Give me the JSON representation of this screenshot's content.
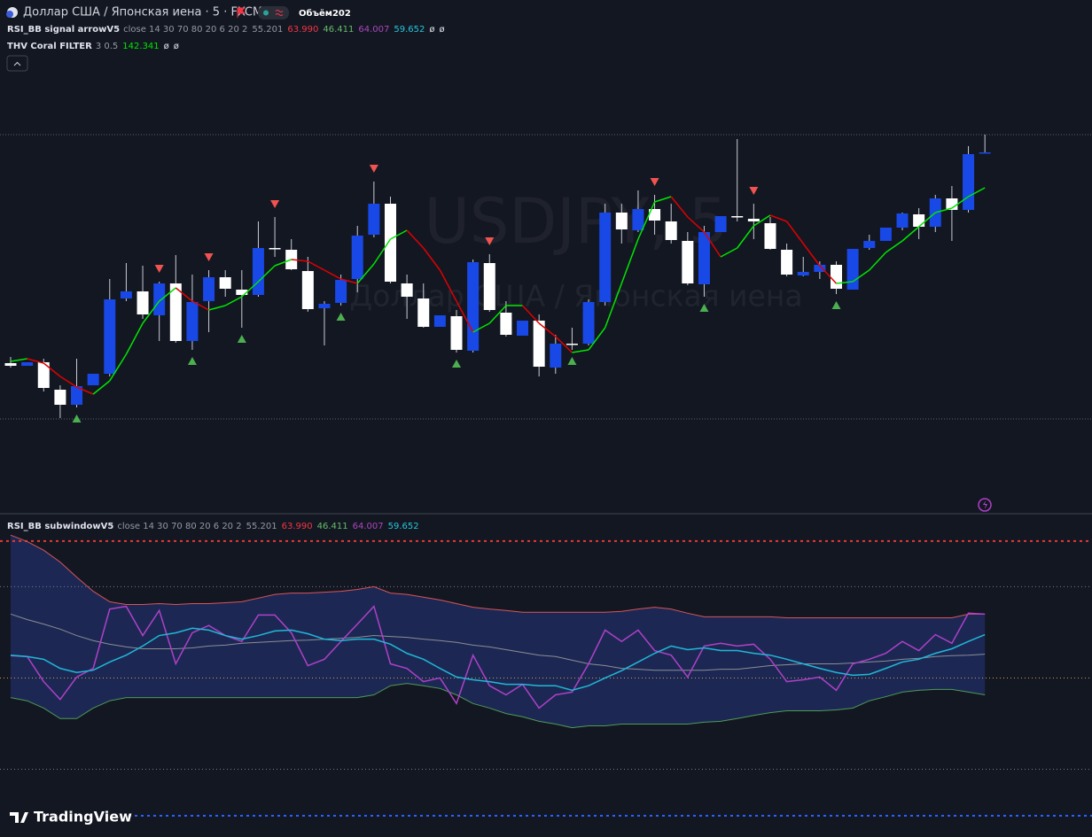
{
  "header": {
    "symbol": "Доллар США / Японская иена · 5 · FXCM",
    "volume": "Объём202"
  },
  "watermark": {
    "symbol": "USDJPY, 5",
    "description": "Доллар США / Японская иена"
  },
  "logo": "TradingView",
  "chart_data": [
    {
      "type": "candlestick",
      "ylim": [
        0,
        350
      ],
      "up_color": "#1848e6",
      "down_color": "#ffffff",
      "wick_color": "#c9ccd4",
      "legends": [
        {
          "name": "RSI_BB signal arrowV5",
          "params": "close 14 30 70 80 20 6 20 2",
          "values": [
            {
              "text": "55.201",
              "color": "#9598a1"
            },
            {
              "text": "63.990",
              "color": "#f23645"
            },
            {
              "text": "46.411",
              "color": "#66bb6a"
            },
            {
              "text": "64.007",
              "color": "#ab47bc"
            },
            {
              "text": "59.652",
              "color": "#26c6da"
            }
          ],
          "extras": [
            "ø",
            "ø"
          ]
        },
        {
          "name": "THV Coral FILTER",
          "params": "3 0.5",
          "values": [
            {
              "text": "142.341",
              "color": "#00e600"
            }
          ],
          "extras": [
            "ø",
            "ø"
          ]
        }
      ],
      "ohlc": [
        [
          70,
          77,
          65,
          67
        ],
        [
          67,
          71,
          67,
          71
        ],
        [
          71,
          75,
          38,
          42
        ],
        [
          40,
          45,
          8,
          23
        ],
        [
          23,
          75,
          20,
          44
        ],
        [
          45,
          58,
          45,
          58
        ],
        [
          58,
          165,
          55,
          142
        ],
        [
          143,
          183,
          140,
          151
        ],
        [
          151,
          180,
          120,
          125
        ],
        [
          124,
          162,
          95,
          160
        ],
        [
          160,
          192,
          93,
          95
        ],
        [
          95,
          170,
          85,
          139
        ],
        [
          140,
          175,
          105,
          167
        ],
        [
          167,
          175,
          145,
          154
        ],
        [
          153,
          175,
          110,
          147
        ],
        [
          147,
          230,
          145,
          200
        ],
        [
          200,
          235,
          190,
          199
        ],
        [
          198,
          210,
          175,
          176
        ],
        [
          174,
          190,
          128,
          131
        ],
        [
          132,
          140,
          90,
          137
        ],
        [
          138,
          170,
          135,
          164
        ],
        [
          165,
          225,
          150,
          214
        ],
        [
          215,
          275,
          212,
          250
        ],
        [
          250,
          258,
          160,
          162
        ],
        [
          160,
          170,
          120,
          145
        ],
        [
          143,
          160,
          110,
          111
        ],
        [
          111,
          124,
          111,
          124
        ],
        [
          123,
          130,
          82,
          85
        ],
        [
          84,
          187,
          82,
          184
        ],
        [
          183,
          193,
          128,
          130
        ],
        [
          127,
          140,
          100,
          102
        ],
        [
          101,
          118,
          101,
          118
        ],
        [
          118,
          125,
          55,
          66
        ],
        [
          65,
          102,
          58,
          92
        ],
        [
          92,
          110,
          85,
          91
        ],
        [
          92,
          142,
          90,
          139
        ],
        [
          139,
          250,
          135,
          240
        ],
        [
          240,
          250,
          205,
          221
        ],
        [
          220,
          265,
          218,
          244
        ],
        [
          244,
          260,
          215,
          231
        ],
        [
          230,
          250,
          205,
          209
        ],
        [
          208,
          218,
          158,
          160
        ],
        [
          159,
          225,
          145,
          218
        ],
        [
          218,
          236,
          218,
          236
        ],
        [
          236,
          323,
          230,
          235
        ],
        [
          233,
          250,
          210,
          230
        ],
        [
          228,
          235,
          198,
          199
        ],
        [
          198,
          205,
          168,
          170
        ],
        [
          169,
          190,
          168,
          173
        ],
        [
          173,
          185,
          165,
          181
        ],
        [
          181,
          185,
          148,
          154
        ],
        [
          153,
          199,
          153,
          199
        ],
        [
          200,
          215,
          198,
          208
        ],
        [
          208,
          223,
          208,
          223
        ],
        [
          223,
          240,
          220,
          239
        ],
        [
          238,
          245,
          210,
          224
        ],
        [
          224,
          260,
          218,
          256
        ],
        [
          256,
          270,
          208,
          243
        ],
        [
          243,
          315,
          240,
          306
        ],
        [
          308,
          328,
          308,
          308
        ]
      ],
      "coral": {
        "up_color": "#00e600",
        "down_color": "#e00000",
        "values": [
          72,
          75,
          70,
          55,
          43,
          35,
          50,
          80,
          115,
          140,
          155,
          140,
          130,
          135,
          145,
          162,
          180,
          187,
          185,
          175,
          165,
          160,
          182,
          210,
          220,
          200,
          175,
          140,
          105,
          115,
          135,
          135,
          115,
          100,
          82,
          85,
          110,
          160,
          210,
          252,
          258,
          235,
          218,
          190,
          200,
          225,
          237,
          230,
          205,
          180,
          160,
          162,
          175,
          195,
          208,
          224,
          240,
          245,
          258,
          268
        ]
      },
      "sell_signals": {
        "color": "#f05350",
        "indices": [
          9,
          12,
          16,
          22,
          29,
          39,
          45
        ]
      },
      "buy_signals": {
        "color": "#4caf50",
        "indices": [
          4,
          11,
          14,
          20,
          27,
          34,
          42,
          50
        ]
      }
    },
    {
      "type": "line",
      "ylim": [
        20,
        86
      ],
      "fill": "#1f2b5c",
      "legends": [
        {
          "name": "RSI_BB subwindowV5",
          "params": "close 14 30 70 80 20 6 20 2",
          "values": [
            {
              "text": "55.201",
              "color": "#9598a1"
            },
            {
              "text": "63.990",
              "color": "#f23645"
            },
            {
              "text": "46.411",
              "color": "#66bb6a"
            },
            {
              "text": "64.007",
              "color": "#ab47bc"
            },
            {
              "text": "59.652",
              "color": "#26c6da"
            }
          ],
          "extras": []
        }
      ],
      "levels": [
        {
          "value": 80,
          "color": "#e53935"
        },
        {
          "value": 70,
          "color": "#787b86"
        },
        {
          "value": 50,
          "color": "#c9a04a"
        },
        {
          "value": 30,
          "color": "#787b86"
        }
      ],
      "series": [
        {
          "color": "#d9545a",
          "values": [
            81.3,
            79.9,
            78.0,
            75.4,
            72.1,
            69.0,
            66.7,
            66.1,
            66.1,
            66.3,
            66.1,
            66.3,
            66.3,
            66.5,
            66.7,
            67.5,
            68.3,
            68.6,
            68.6,
            68.8,
            69.0,
            69.4,
            70.0,
            68.6,
            68.3,
            67.7,
            67.1,
            66.3,
            65.5,
            65.1,
            64.8,
            64.4,
            64.4,
            64.4,
            64.4,
            64.4,
            64.4,
            64.6,
            65.1,
            65.5,
            65.1,
            64.2,
            63.4,
            63.4,
            63.4,
            63.4,
            63.4,
            63.2,
            63.2,
            63.2,
            63.2,
            63.2,
            63.2,
            63.2,
            63.2,
            63.2,
            63.2,
            63.2,
            64.0,
            64.0
          ]
        },
        {
          "color": "#4f9a56",
          "values": [
            45.7,
            45.0,
            43.4,
            41.1,
            41.1,
            43.4,
            45.0,
            45.7,
            45.7,
            45.7,
            45.7,
            45.7,
            45.7,
            45.7,
            45.7,
            45.7,
            45.7,
            45.7,
            45.7,
            45.7,
            45.7,
            45.7,
            46.3,
            48.3,
            48.8,
            48.3,
            47.7,
            46.3,
            44.4,
            43.4,
            42.2,
            41.5,
            40.5,
            39.9,
            39.1,
            39.5,
            39.5,
            39.9,
            39.9,
            39.9,
            39.9,
            39.9,
            40.3,
            40.5,
            41.1,
            41.8,
            42.4,
            42.8,
            42.8,
            42.8,
            43.0,
            43.4,
            45.0,
            45.9,
            46.9,
            47.3,
            47.5,
            47.5,
            46.9,
            46.3
          ]
        },
        {
          "color": "#8a8d96",
          "values": [
            64.0,
            62.8,
            61.8,
            60.7,
            59.3,
            58.2,
            57.4,
            56.8,
            56.4,
            56.4,
            56.4,
            56.6,
            57.0,
            57.2,
            57.6,
            57.8,
            58.0,
            58.2,
            58.3,
            58.5,
            58.7,
            58.9,
            59.3,
            59.1,
            58.9,
            58.5,
            58.2,
            57.8,
            57.2,
            56.8,
            56.2,
            55.6,
            55.0,
            54.7,
            53.9,
            53.1,
            52.7,
            52.1,
            51.9,
            51.7,
            51.7,
            51.7,
            51.7,
            51.9,
            51.9,
            52.3,
            52.7,
            52.9,
            53.1,
            53.1,
            53.1,
            53.3,
            53.5,
            53.7,
            54.1,
            54.3,
            54.7,
            54.9,
            55.0,
            55.2
          ]
        },
        {
          "color": "#b040c8",
          "values": [
            54.9,
            54.7,
            49.2,
            45.3,
            50.2,
            52.1,
            65.1,
            65.7,
            59.3,
            64.8,
            53.1,
            59.9,
            61.5,
            59.3,
            58.0,
            63.8,
            63.8,
            59.9,
            52.7,
            54.1,
            58.0,
            61.8,
            65.7,
            53.1,
            52.1,
            49.2,
            50.0,
            44.4,
            55.0,
            48.3,
            46.3,
            48.6,
            43.4,
            46.3,
            46.9,
            53.1,
            60.5,
            58.0,
            60.5,
            56.0,
            55.0,
            50.2,
            57.0,
            57.6,
            57.0,
            57.4,
            54.1,
            49.2,
            49.6,
            50.2,
            47.3,
            53.1,
            54.1,
            55.4,
            58.0,
            56.0,
            59.5,
            57.6,
            64.2,
            64.0
          ]
        },
        {
          "color": "#1fb8d8",
          "values": [
            55.0,
            54.7,
            54.1,
            52.1,
            51.2,
            51.7,
            53.5,
            55.0,
            57.0,
            59.3,
            59.9,
            60.9,
            60.5,
            59.3,
            58.5,
            59.3,
            60.3,
            60.5,
            59.7,
            58.5,
            58.2,
            58.5,
            58.5,
            57.4,
            55.4,
            54.1,
            52.1,
            50.2,
            49.6,
            49.2,
            48.6,
            48.6,
            48.3,
            48.3,
            47.3,
            48.3,
            50.0,
            51.6,
            53.5,
            55.4,
            57.0,
            56.2,
            56.6,
            56.0,
            56.0,
            55.4,
            55.0,
            54.1,
            53.1,
            52.1,
            51.2,
            50.6,
            50.8,
            52.1,
            53.5,
            54.1,
            55.4,
            56.4,
            58.0,
            59.5
          ]
        }
      ]
    }
  ]
}
